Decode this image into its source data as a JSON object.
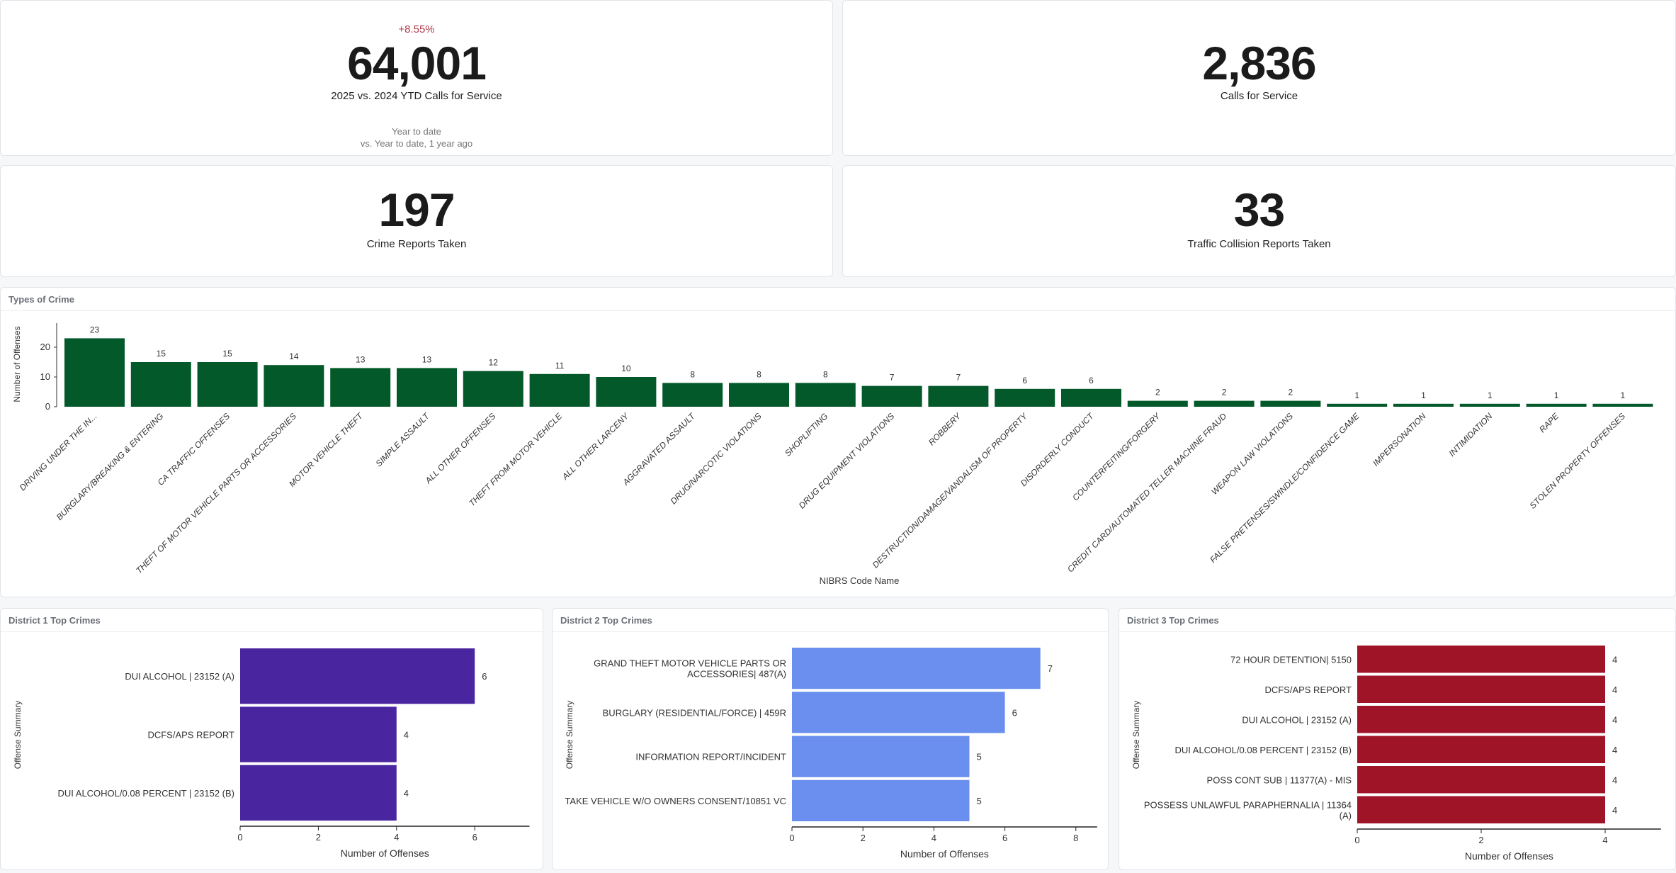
{
  "kpis": {
    "calls_ytd": {
      "delta": "+8.55%",
      "value": "64,001",
      "label": "2025 vs. 2024 YTD Calls for Service",
      "period": "Year to date",
      "comparison": "vs. Year to date, 1 year ago"
    },
    "calls": {
      "value": "2,836",
      "label": "Calls for Service"
    },
    "crime_reports": {
      "value": "197",
      "label": "Crime Reports Taken"
    },
    "collision_reports": {
      "value": "33",
      "label": "Traffic Collision Reports Taken"
    }
  },
  "colors": {
    "types": "#04592a",
    "district1": "#4a25a0",
    "district2": "#6a8fee",
    "district3": "#a01428",
    "delta": "#b03a48"
  },
  "chart_data": [
    {
      "type": "bar",
      "title": "Types of Crime",
      "xlabel": "NIBRS Code Name",
      "ylabel": "Number of Offenses",
      "ylim": [
        0,
        25
      ],
      "yticks": [
        0,
        10,
        20
      ],
      "categories": [
        "DRIVING UNDER THE IN...",
        "BURGLARY/BREAKING & ENTERING",
        "CA TRAFFIC OFFENSES",
        "THEFT OF MOTOR VEHICLE PARTS OR ACCESSORIES",
        "MOTOR VEHICLE THEFT",
        "SIMPLE ASSAULT",
        "ALL OTHER OFFENSES",
        "THEFT FROM MOTOR VEHICLE",
        "ALL OTHER LARCENY",
        "AGGRAVATED ASSAULT",
        "DRUG/NARCOTIC VIOLATIONS",
        "SHOPLIFTING",
        "DRUG EQUIPMENT VIOLATIONS",
        "ROBBERY",
        "DESTRUCTION/DAMAGE/VANDALISM OF PROPERTY",
        "DISORDERLY CONDUCT",
        "COUNTERFEITING/FORGERY",
        "CREDIT CARD/AUTOMATED TELLER MACHINE FRAUD",
        "WEAPON LAW VIOLATIONS",
        "FALSE PRETENSES/SWINDLE/CONFIDENCE GAME",
        "IMPERSONATION",
        "INTIMIDATION",
        "RAPE",
        "STOLEN PROPERTY OFFENSES"
      ],
      "values": [
        23,
        15,
        15,
        14,
        13,
        13,
        12,
        11,
        10,
        8,
        8,
        8,
        7,
        7,
        6,
        6,
        2,
        2,
        2,
        1,
        1,
        1,
        1,
        1
      ]
    },
    {
      "type": "bar",
      "orientation": "horizontal",
      "title": "District 1 Top Crimes",
      "xlabel": "Number of Offenses",
      "ylabel": "Offense Summary",
      "xlim": [
        0,
        7.4
      ],
      "xticks": [
        0,
        2,
        4,
        6
      ],
      "categories": [
        "DUI ALCOHOL | 23152 (A)",
        "DCFS/APS REPORT",
        "DUI ALCOHOL/0.08 PERCENT | 23152 (B)"
      ],
      "values": [
        6,
        4,
        4
      ]
    },
    {
      "type": "bar",
      "orientation": "horizontal",
      "title": "District 2 Top Crimes",
      "xlabel": "Number of Offenses",
      "ylabel": "Offense Summary",
      "xlim": [
        0,
        8.6
      ],
      "xticks": [
        0,
        2,
        4,
        6,
        8
      ],
      "categories": [
        [
          "GRAND THEFT MOTOR VEHICLE PARTS OR",
          "ACCESSORIES| 487(A)"
        ],
        "BURGLARY (RESIDENTIAL/FORCE) | 459R",
        "INFORMATION REPORT/INCIDENT",
        "TAKE VEHICLE W/O OWNERS CONSENT/10851 VC"
      ],
      "values": [
        7,
        6,
        5,
        5
      ]
    },
    {
      "type": "bar",
      "orientation": "horizontal",
      "title": "District 3 Top Crimes",
      "xlabel": "Number of Offenses",
      "ylabel": "Offense Summary",
      "xlim": [
        0,
        4.9
      ],
      "xticks": [
        0,
        2,
        4
      ],
      "categories": [
        "72 HOUR DETENTION| 5150",
        "DCFS/APS REPORT",
        "DUI ALCOHOL | 23152 (A)",
        "DUI ALCOHOL/0.08 PERCENT | 23152 (B)",
        "POSS CONT SUB | 11377(A) - MIS",
        [
          "POSSESS UNLAWFUL PARAPHERNALIA | 11364",
          "(A)"
        ]
      ],
      "values": [
        4,
        4,
        4,
        4,
        4,
        4
      ]
    }
  ]
}
